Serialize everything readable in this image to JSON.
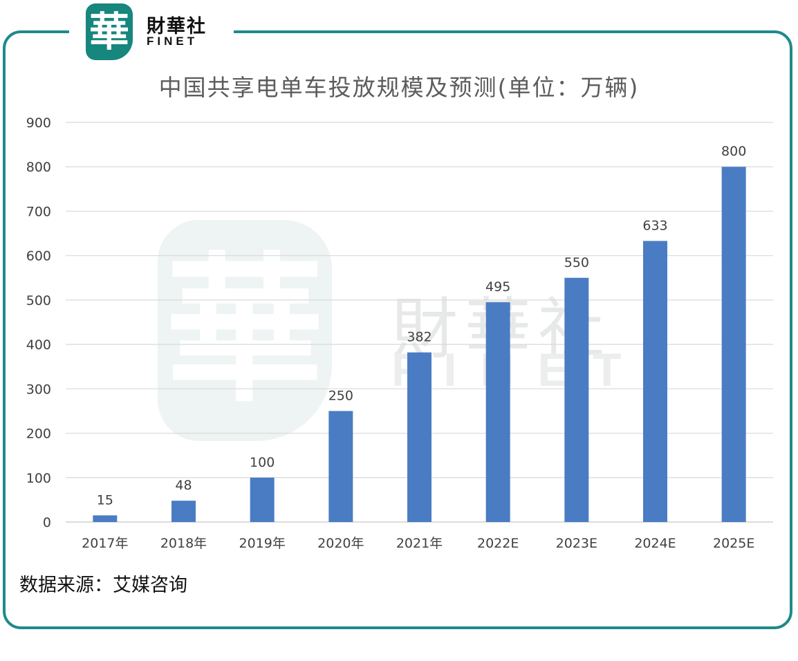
{
  "logo": {
    "mark": "華",
    "name_cn": "財華社",
    "name_en": "FINET"
  },
  "watermark": {
    "mark": "華",
    "name_cn": "財華社",
    "name_en": "FINET"
  },
  "source": "数据来源：艾媒咨询",
  "colors": {
    "bar": "#4a7cc4",
    "frame": "#1f8a8a",
    "grid": "#d9d9d9",
    "label": "#404040"
  },
  "chart_data": {
    "type": "bar",
    "title": "中国共享电单车投放规模及预测(单位：万辆)",
    "xlabel": "",
    "ylabel": "",
    "categories": [
      "2017年",
      "2018年",
      "2019年",
      "2020年",
      "2021年",
      "2022E",
      "2023E",
      "2024E",
      "2025E"
    ],
    "values": [
      15,
      48,
      100,
      250,
      382,
      495,
      550,
      633,
      800
    ],
    "data_labels": [
      "15",
      "48",
      "100",
      "250",
      "382",
      "495",
      "550",
      "633",
      "800"
    ],
    "ylim": [
      0,
      900
    ],
    "yticks": [
      0,
      100,
      200,
      300,
      400,
      500,
      600,
      700,
      800,
      900
    ],
    "grid": true,
    "legend": "none"
  }
}
